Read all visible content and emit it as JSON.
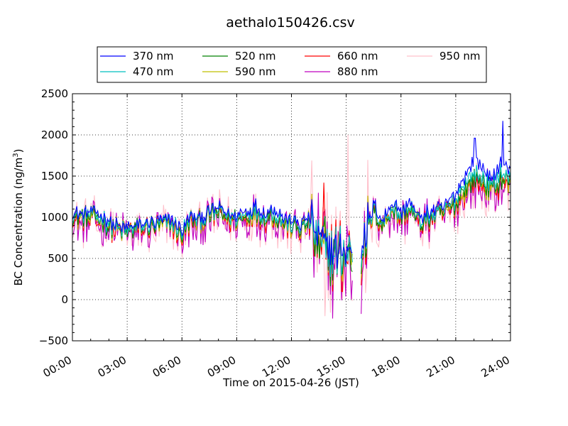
{
  "chart_data": {
    "type": "line",
    "title": "aethalo150426.csv",
    "xlabel": "Time on 2015-04-26 (JST)",
    "ylabel": "BC Concentration (ng/m³)",
    "ylabel_parts": {
      "main": "BC Concentration (ng/m",
      "sup": "3",
      "close": ")"
    },
    "xlim": [
      0,
      24
    ],
    "ylim": [
      -500,
      2500
    ],
    "xticks": [
      {
        "hour": 0,
        "label": "00:00"
      },
      {
        "hour": 3,
        "label": "03:00"
      },
      {
        "hour": 6,
        "label": "06:00"
      },
      {
        "hour": 9,
        "label": "09:00"
      },
      {
        "hour": 12,
        "label": "12:00"
      },
      {
        "hour": 15,
        "label": "15:00"
      },
      {
        "hour": 18,
        "label": "18:00"
      },
      {
        "hour": 21,
        "label": "21:00"
      },
      {
        "hour": 24,
        "label": "24:00"
      }
    ],
    "yticks": [
      {
        "value": -500,
        "label": "−500"
      },
      {
        "value": 0,
        "label": "0"
      },
      {
        "value": 500,
        "label": "500"
      },
      {
        "value": 1000,
        "label": "1000"
      },
      {
        "value": 1500,
        "label": "1500"
      },
      {
        "value": 2000,
        "label": "2000"
      },
      {
        "value": 2500,
        "label": "2500"
      }
    ],
    "grid": true,
    "legend_position": "top, above plot",
    "x": [
      0,
      0.5,
      1,
      1.5,
      2,
      2.5,
      3,
      3.5,
      4,
      4.5,
      5,
      5.5,
      6,
      6.5,
      7,
      7.5,
      8,
      8.5,
      9,
      9.5,
      10,
      10.5,
      11,
      11.5,
      12,
      12.5,
      13,
      13.5,
      14,
      14.5,
      15,
      15.5,
      16,
      16.5,
      17,
      17.5,
      18,
      18.5,
      19,
      19.5,
      20,
      20.5,
      21,
      21.5,
      22,
      22.5,
      23,
      23.5,
      24
    ],
    "series": [
      {
        "name": "370 nm",
        "color": "#0000ff",
        "amp": 0.6,
        "values": [
          1040,
          1050,
          1060,
          1040,
          960,
          900,
          880,
          900,
          920,
          940,
          950,
          970,
          850,
          1020,
          1000,
          1080,
          1120,
          1060,
          1020,
          1080,
          1150,
          1050,
          1100,
          1000,
          950,
          920,
          1000,
          700,
          650,
          600,
          600,
          650,
          750,
          1150,
          950,
          1200,
          1050,
          1200,
          1000,
          1050,
          1100,
          1150,
          1300,
          1500,
          1700,
          1600,
          1450,
          1700,
          1550
        ]
      },
      {
        "name": "470 nm",
        "color": "#00bfbf",
        "amp": 0.75,
        "values": [
          1010,
          1020,
          1020,
          1000,
          930,
          870,
          850,
          870,
          890,
          910,
          920,
          940,
          820,
          990,
          970,
          1040,
          1080,
          1020,
          990,
          1040,
          1100,
          1010,
          1060,
          960,
          920,
          890,
          960,
          660,
          600,
          560,
          560,
          620,
          720,
          1100,
          920,
          1150,
          1010,
          1150,
          960,
          1010,
          1060,
          1100,
          1220,
          1400,
          1550,
          1480,
          1380,
          1550,
          1450
        ]
      },
      {
        "name": "520 nm",
        "color": "#008000",
        "amp": 0.85,
        "values": [
          990,
          1000,
          1000,
          980,
          910,
          860,
          840,
          860,
          880,
          900,
          910,
          920,
          800,
          970,
          950,
          1020,
          1060,
          1000,
          970,
          1020,
          1080,
          990,
          1040,
          940,
          900,
          870,
          940,
          640,
          580,
          540,
          540,
          600,
          700,
          1080,
          900,
          1120,
          990,
          1120,
          940,
          990,
          1040,
          1080,
          1180,
          1350,
          1480,
          1420,
          1340,
          1480,
          1400
        ]
      },
      {
        "name": "590 nm",
        "color": "#bfbf00",
        "amp": 0.9,
        "values": [
          980,
          990,
          990,
          970,
          900,
          850,
          830,
          850,
          870,
          890,
          900,
          910,
          790,
          960,
          940,
          1010,
          1050,
          990,
          960,
          1010,
          1070,
          980,
          1030,
          930,
          890,
          860,
          930,
          630,
          570,
          530,
          530,
          590,
          690,
          1070,
          890,
          1110,
          980,
          1110,
          930,
          980,
          1030,
          1070,
          1160,
          1320,
          1450,
          1400,
          1320,
          1450,
          1380
        ]
      },
      {
        "name": "660 nm",
        "color": "#ff0000",
        "amp": 1.0,
        "values": [
          970,
          980,
          980,
          960,
          890,
          840,
          820,
          840,
          860,
          880,
          890,
          900,
          780,
          950,
          930,
          1000,
          1040,
          980,
          950,
          1000,
          1060,
          970,
          1020,
          920,
          880,
          850,
          920,
          620,
          560,
          520,
          520,
          580,
          680,
          1060,
          880,
          1100,
          970,
          1100,
          920,
          970,
          1020,
          1060,
          1150,
          1300,
          1430,
          1380,
          1300,
          1430,
          1370
        ]
      },
      {
        "name": "880 nm",
        "color": "#bf00bf",
        "amp": 1.6,
        "values": [
          930,
          940,
          950,
          930,
          860,
          810,
          790,
          810,
          830,
          850,
          860,
          880,
          760,
          930,
          910,
          980,
          1020,
          960,
          930,
          980,
          1040,
          950,
          1000,
          900,
          860,
          830,
          900,
          600,
          540,
          500,
          500,
          560,
          660,
          1040,
          860,
          1080,
          950,
          1080,
          900,
          950,
          1000,
          1040,
          1120,
          1260,
          1380,
          1340,
          1260,
          1380,
          1320
        ]
      },
      {
        "name": "950 nm",
        "color": "#ffc0cb",
        "amp": 1.9,
        "values": [
          920,
          930,
          940,
          920,
          850,
          800,
          780,
          800,
          820,
          840,
          850,
          860,
          740,
          910,
          890,
          960,
          1000,
          940,
          910,
          960,
          1020,
          930,
          980,
          880,
          840,
          810,
          880,
          580,
          520,
          480,
          480,
          540,
          640,
          1020,
          840,
          1060,
          930,
          1060,
          880,
          930,
          980,
          1020,
          1100,
          1240,
          1360,
          1320,
          1240,
          1360,
          1300
        ]
      }
    ],
    "spikes": [
      {
        "hour": 13.75,
        "value": 1420,
        "series": "660 nm"
      },
      {
        "hour": 13.85,
        "value": -200,
        "series": "950 nm"
      },
      {
        "hour": 15.1,
        "value": 2000,
        "series": "950 nm"
      },
      {
        "hour": 14.8,
        "value": 10,
        "series": "950 nm"
      },
      {
        "hour": 23.6,
        "value": 2170,
        "series": "370 nm"
      },
      {
        "hour": 22.05,
        "value": 1960,
        "series": "370 nm"
      }
    ]
  }
}
